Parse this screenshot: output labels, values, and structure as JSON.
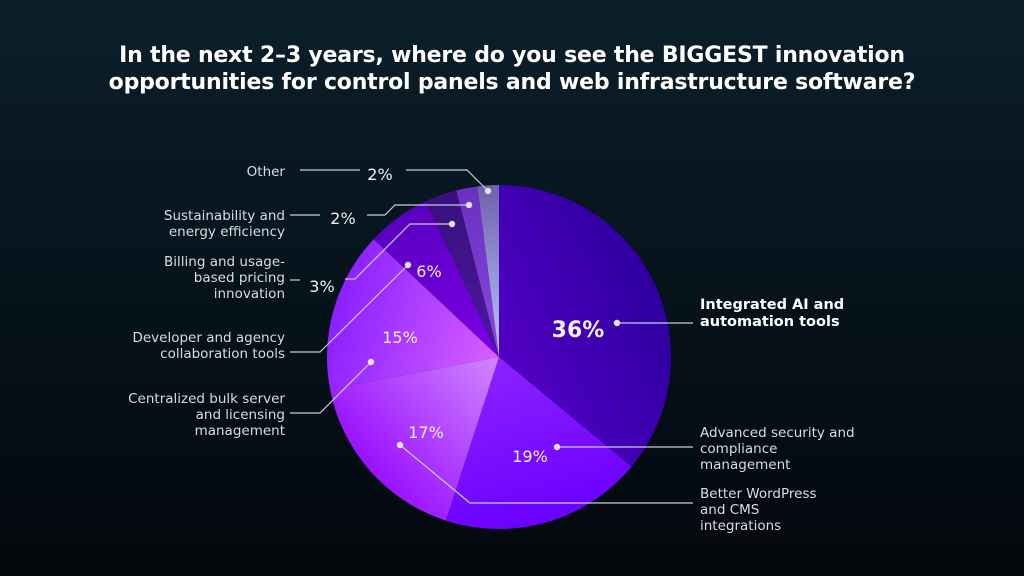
{
  "chart_data": {
    "type": "pie",
    "title": "In the next 2–3 years, where do you see the BIGGEST innovation opportunities for control panels and web infrastructure software?",
    "title_lines": [
      "In the next 2–3 years, where do you see the BIGGEST innovation",
      "opportunities for control panels and web infrastructure software?"
    ],
    "slices": [
      {
        "label": "Integrated AI and automation tools",
        "value": 36,
        "value_label": "36%",
        "color": "#5200c4",
        "color2": "#2e00a0"
      },
      {
        "label": "Advanced security and compliance management",
        "value": 19,
        "value_label": "19%",
        "color": "#8d22ff",
        "color2": "#6a00ff"
      },
      {
        "label": "Better WordPress and CMS integrations",
        "value": 17,
        "value_label": "17%",
        "color": "#d088ff",
        "color2": "#9a10ff"
      },
      {
        "label": "Centralized bulk server and licensing management",
        "value": 15,
        "value_label": "15%",
        "color": "#d860ff",
        "color2": "#8a20ff"
      },
      {
        "label": "Developer and agency collaboration tools",
        "value": 6,
        "value_label": "6%",
        "color": "#7c00e8",
        "color2": "#5a00c0"
      },
      {
        "label": "Billing and usage-based pricing innovation",
        "value": 3,
        "value_label": "3%",
        "color": "#4a1a9e",
        "color2": "#3a1080"
      },
      {
        "label": "Sustainability and energy efficiency",
        "value": 2,
        "value_label": "2%",
        "color": "#8a48e0",
        "color2": "#6a30c0"
      },
      {
        "label": "Other",
        "value": 2,
        "value_label": "2%",
        "color": "#b8c8f8",
        "color2": "#7060b0"
      }
    ],
    "legend": "leader-line labels"
  }
}
